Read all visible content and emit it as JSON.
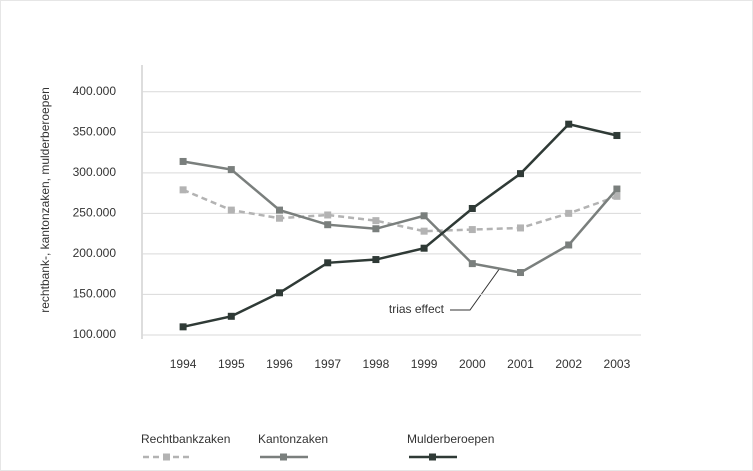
{
  "chart_data": {
    "type": "line",
    "ylabel": "rechtbank-, kantonzaken, mulderberoepen",
    "categories": [
      "1994",
      "1995",
      "1996",
      "1997",
      "1998",
      "1999",
      "2000",
      "2001",
      "2002",
      "2003"
    ],
    "series": [
      {
        "name": "Rechtbankzaken",
        "color": "#b3b3b3",
        "dashed": true,
        "values": [
          279000,
          254000,
          244000,
          248000,
          241000,
          228000,
          230000,
          232000,
          250000,
          271000
        ]
      },
      {
        "name": "Kantonzaken",
        "color": "#7a7f7d",
        "dashed": false,
        "values": [
          314000,
          304000,
          254000,
          236000,
          231000,
          247000,
          188000,
          177000,
          211000,
          280000
        ]
      },
      {
        "name": "Mulderberoepen",
        "color": "#2f3a36",
        "dashed": false,
        "values": [
          110000,
          123000,
          152000,
          189000,
          193000,
          207000,
          256000,
          299000,
          360000,
          346000
        ]
      }
    ],
    "ylim": [
      95000,
      433000
    ],
    "yticks": [
      {
        "value": 100000,
        "label": "100.000"
      },
      {
        "value": 150000,
        "label": "150.000"
      },
      {
        "value": 200000,
        "label": "200.000"
      },
      {
        "value": 250000,
        "label": "250.000"
      },
      {
        "value": 300000,
        "label": "300.000"
      },
      {
        "value": 350000,
        "label": "350.000"
      },
      {
        "value": 400000,
        "label": "400.000"
      }
    ],
    "grid": true,
    "legend": "bottom",
    "annotation": "trias effect"
  }
}
